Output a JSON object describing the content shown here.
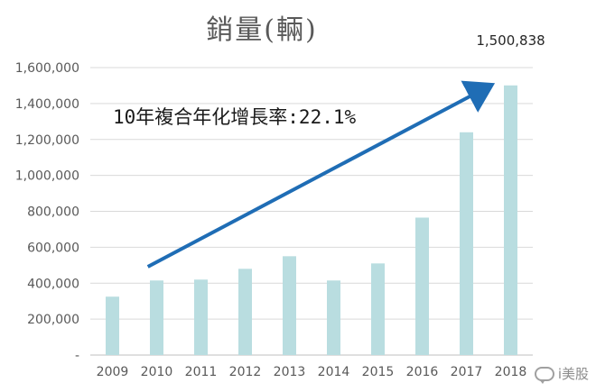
{
  "chart_data": {
    "type": "bar",
    "title": "銷量(輛)",
    "categories": [
      "2009",
      "2010",
      "2011",
      "2012",
      "2013",
      "2014",
      "2015",
      "2016",
      "2017",
      "2018"
    ],
    "values": [
      325000,
      415000,
      420000,
      480000,
      550000,
      415000,
      510000,
      765000,
      1240000,
      1500838
    ],
    "ylim": [
      0,
      1600000
    ],
    "yticks": [
      "-",
      "200,000",
      "400,000",
      "600,000",
      "800,000",
      "1,000,000",
      "1,200,000",
      "1,400,000",
      "1,600,000"
    ],
    "grid": true,
    "bar_color": "#b9dde0",
    "annotations": {
      "top_value_label": "1,500,838",
      "cagr_text": "10年複合年化增長率:22.1%",
      "arrow_color": "#1f6db5"
    }
  },
  "watermark": "i美股"
}
